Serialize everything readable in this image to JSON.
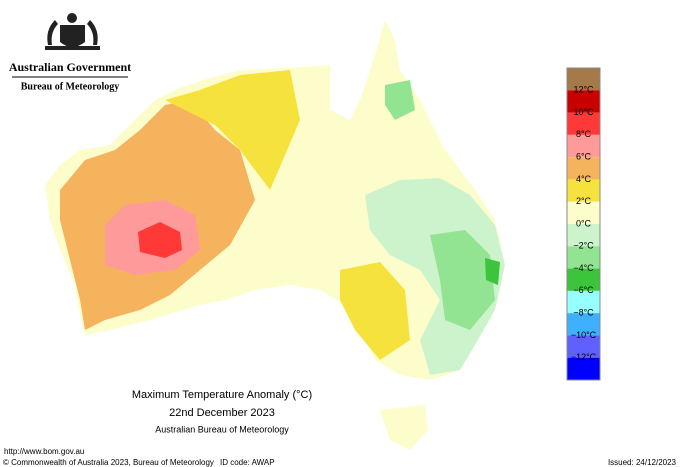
{
  "header": {
    "government": "Australian Government",
    "bureau": "Bureau of Meteorology"
  },
  "legend": {
    "colors": [
      "#a57a48",
      "#c80000",
      "#ff3838",
      "#ff9a9a",
      "#f6b35e",
      "#f6e23c",
      "#fdfdcc",
      "#cdf3cd",
      "#92e492",
      "#3cc43c",
      "#96ffff",
      "#3fb0ff",
      "#6060ff",
      "#0000ff"
    ],
    "labels": [
      "12°C",
      "10°C",
      "8°C",
      "6°C",
      "4°C",
      "2°C",
      "0°C",
      "−2°C",
      "−4°C",
      "−6°C",
      "−8°C",
      "−10°C",
      "−12°C"
    ]
  },
  "title": {
    "line1": "Maximum Temperature Anomaly (°C)",
    "line2": "22nd December 2023",
    "line3": "Australian Bureau of Meteorology"
  },
  "footer": {
    "url": "http://www.bom.gov.au",
    "copyright": "© Commonwealth of Australia 2023, Bureau of Meteorology",
    "id_code": "ID code: AWAP",
    "issued": "Issued: 24/12/2023"
  }
}
